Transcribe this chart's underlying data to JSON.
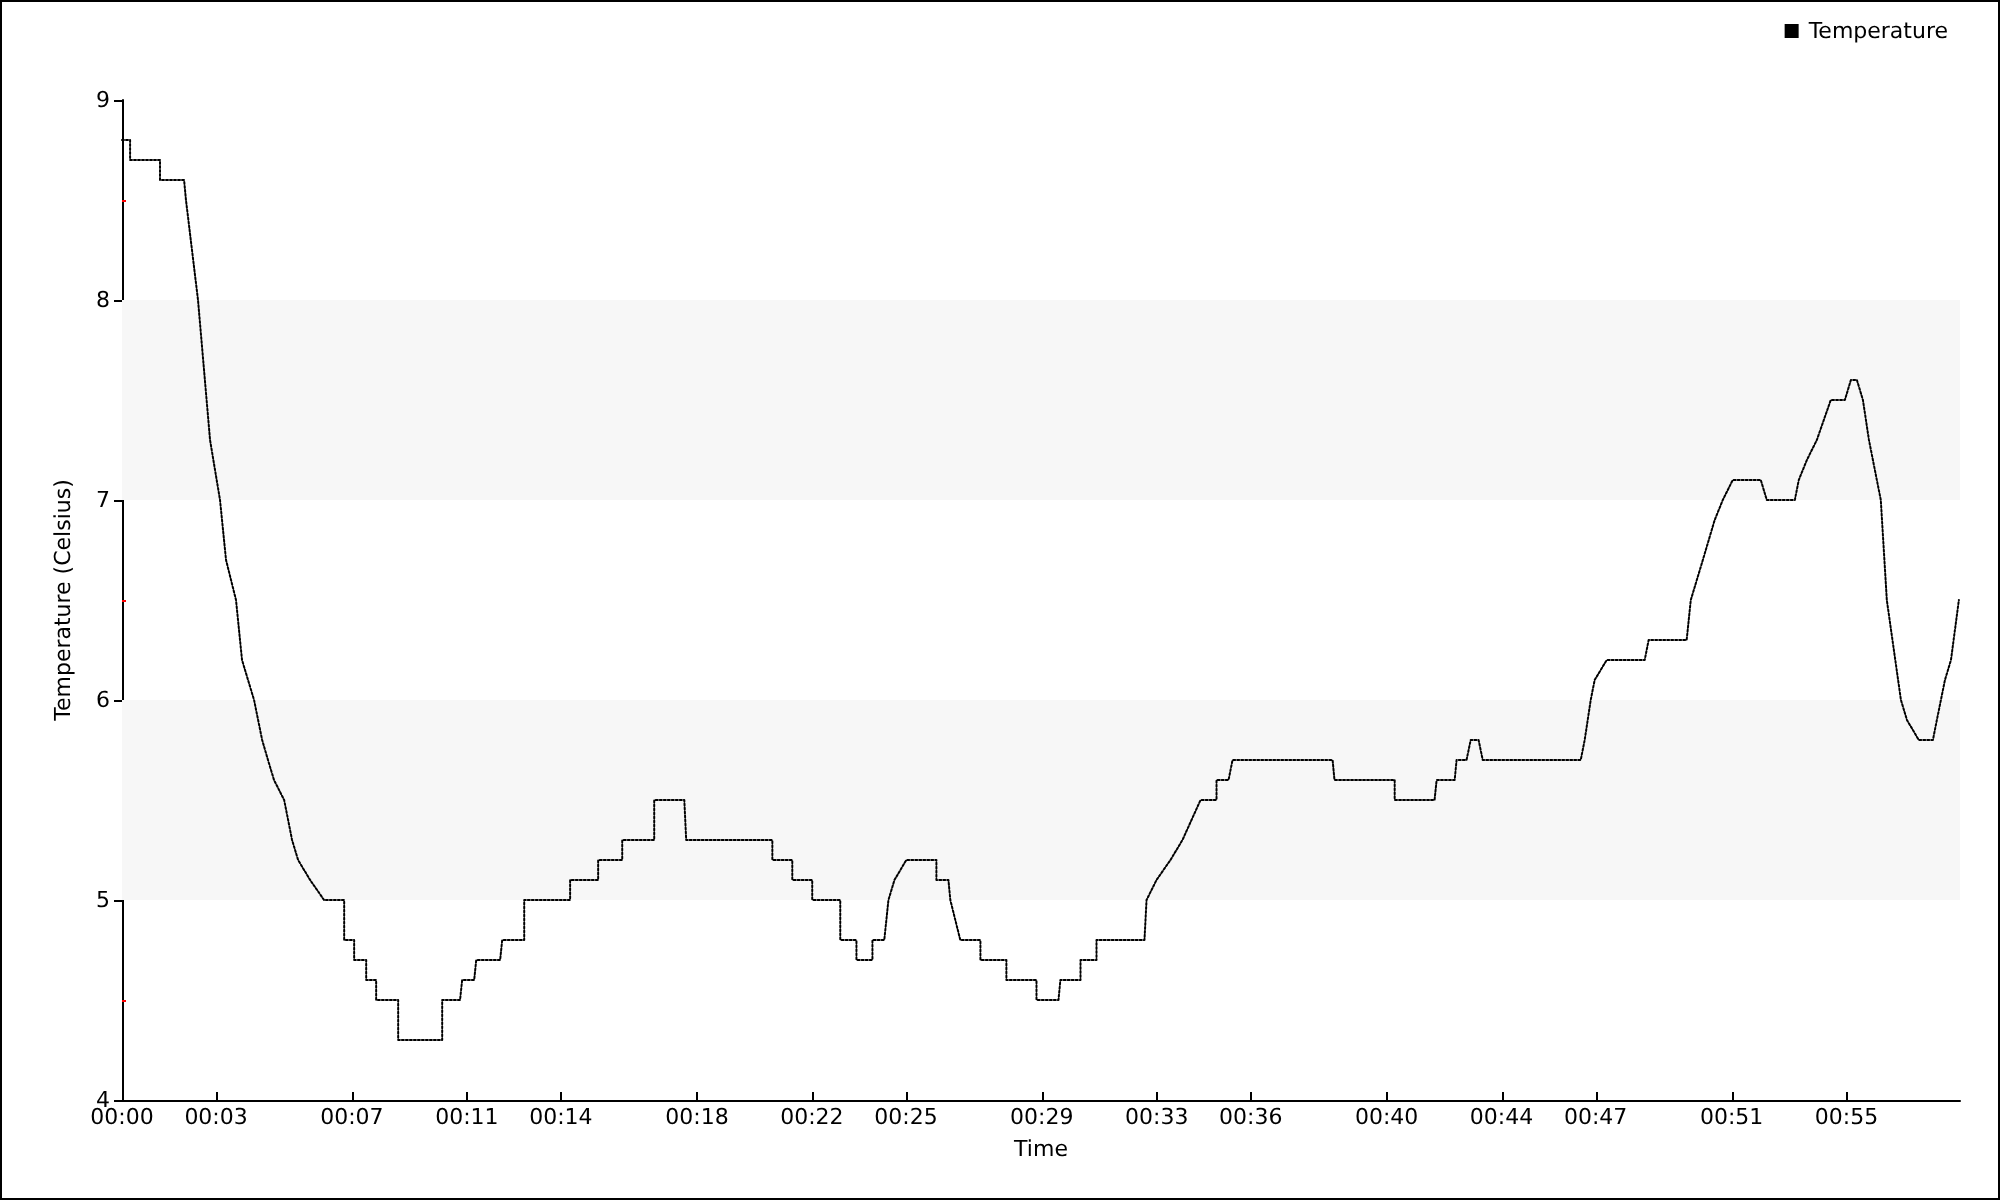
{
  "chart_data": {
    "type": "line",
    "xlabel": "Time",
    "ylabel": "Temperature (Celsius)",
    "x": [
      0,
      0.0043,
      0.0043,
      0.0202,
      0.0202,
      0.033,
      0.034,
      0.0404,
      0.0468,
      0.0521,
      0.0553,
      0.0606,
      0.0638,
      0.067,
      0.0702,
      0.0745,
      0.0776,
      0.0808,
      0.0862,
      0.0904,
      0.0936,
      0.1,
      0.1074,
      0.1181,
      0.1181,
      0.1234,
      0.1234,
      0.1298,
      0.1298,
      0.1351,
      0.1351,
      0.1468,
      0.1468,
      0.1702,
      0.1702,
      0.1797,
      0.1808,
      0.1872,
      0.1883,
      0.201,
      0.2021,
      0.2138,
      0.2138,
      0.2382,
      0.2382,
      0.2531,
      0.2531,
      0.2659,
      0.2659,
      0.2829,
      0.2829,
      0.2989,
      0.2999,
      0.3457,
      0.3457,
      0.3563,
      0.3563,
      0.3669,
      0.3669,
      0.3818,
      0.3818,
      0.3904,
      0.3904,
      0.3989,
      0.3989,
      0.4052,
      0.4074,
      0.4106,
      0.4169,
      0.4329,
      0.4329,
      0.4393,
      0.4403,
      0.4456,
      0.4563,
      0.4563,
      0.4701,
      0.4701,
      0.4861,
      0.4861,
      0.4978,
      0.4988,
      0.5095,
      0.5095,
      0.518,
      0.518,
      0.5435,
      0.5446,
      0.5499,
      0.5573,
      0.5637,
      0.5733,
      0.5818,
      0.5818,
      0.5882,
      0.5903,
      0.6435,
      0.6445,
      0.6765,
      0.6765,
      0.6977,
      0.6988,
      0.7084,
      0.7094,
      0.7147,
      0.7169,
      0.7211,
      0.7233,
      0.7754,
      0.7775,
      0.7807,
      0.7828,
      0.7892,
      0.8094,
      0.8115,
      0.8317,
      0.8339,
      0.8371,
      0.8403,
      0.8466,
      0.8509,
      0.8562,
      0.8711,
      0.8743,
      0.8892,
      0.8913,
      0.8956,
      0.9009,
      0.9083,
      0.9158,
      0.919,
      0.9222,
      0.9254,
      0.9286,
      0.9349,
      0.9381,
      0.9456,
      0.9488,
      0.9551,
      0.9626,
      0.9647,
      0.969,
      0.9722,
      0.9764
    ],
    "series": [
      {
        "name": "Temperature",
        "color": "#000000",
        "values": [
          8.8,
          8.8,
          8.7,
          8.7,
          8.6,
          8.6,
          8.5,
          8.0,
          7.3,
          7.0,
          6.7,
          6.5,
          6.2,
          6.1,
          6.0,
          5.8,
          5.7,
          5.6,
          5.5,
          5.3,
          5.2,
          5.1,
          5.0,
          5.0,
          4.8,
          4.8,
          4.7,
          4.7,
          4.6,
          4.6,
          4.5,
          4.5,
          4.3,
          4.3,
          4.5,
          4.5,
          4.6,
          4.6,
          4.7,
          4.7,
          4.8,
          4.8,
          5.0,
          5.0,
          5.1,
          5.1,
          5.2,
          5.2,
          5.3,
          5.3,
          5.5,
          5.5,
          5.3,
          5.3,
          5.2,
          5.2,
          5.1,
          5.1,
          5.0,
          5.0,
          4.8,
          4.8,
          4.7,
          4.7,
          4.8,
          4.8,
          5.0,
          5.1,
          5.2,
          5.2,
          5.1,
          5.1,
          5.0,
          4.8,
          4.8,
          4.7,
          4.7,
          4.6,
          4.6,
          4.5,
          4.5,
          4.6,
          4.6,
          4.7,
          4.7,
          4.8,
          4.8,
          5.0,
          5.1,
          5.2,
          5.3,
          5.5,
          5.5,
          5.6,
          5.6,
          5.7,
          5.7,
          5.6,
          5.6,
          5.5,
          5.5,
          5.6,
          5.6,
          5.7,
          5.7,
          5.8,
          5.8,
          5.7,
          5.7,
          5.8,
          6.0,
          6.1,
          6.2,
          6.2,
          6.3,
          6.3,
          6.5,
          6.6,
          6.7,
          6.9,
          7.0,
          7.1,
          7.1,
          7.0,
          7.0,
          7.1,
          7.2,
          7.3,
          7.5,
          7.5,
          7.6,
          7.6,
          7.5,
          7.3,
          7.0,
          6.5,
          6.0,
          5.9,
          5.8,
          5.8,
          5.9,
          6.1,
          6.2,
          6.5
        ]
      }
    ],
    "xlim": [
      0,
      0.977
    ],
    "xticks": [
      {
        "value": 0,
        "label": "00:00"
      },
      {
        "value": 0.05,
        "label": "00:03"
      },
      {
        "value": 0.1222,
        "label": "00:07"
      },
      {
        "value": 0.1833,
        "label": "00:11"
      },
      {
        "value": 0.2333,
        "label": "00:14"
      },
      {
        "value": 0.3056,
        "label": "00:18"
      },
      {
        "value": 0.3667,
        "label": "00:22"
      },
      {
        "value": 0.4167,
        "label": "00:25"
      },
      {
        "value": 0.4889,
        "label": "00:29"
      },
      {
        "value": 0.55,
        "label": "00:33"
      },
      {
        "value": 0.6,
        "label": "00:36"
      },
      {
        "value": 0.6722,
        "label": "00:40"
      },
      {
        "value": 0.7333,
        "label": "00:44"
      },
      {
        "value": 0.7833,
        "label": "00:47"
      },
      {
        "value": 0.8556,
        "label": "00:51"
      },
      {
        "value": 0.9167,
        "label": "00:55"
      }
    ],
    "ylim": [
      4,
      9
    ],
    "yticks": [
      4,
      {
        "value": 4.5,
        "label": null
      },
      5,
      {
        "value": 5.5,
        "label": null
      },
      6,
      {
        "value": 6.5,
        "label": null
      },
      7,
      {
        "value": 7.5,
        "label": null
      },
      8,
      {
        "value": 8.5,
        "label": null
      },
      9
    ],
    "bands": [
      {
        "axis": "y",
        "from": 5,
        "to": 6,
        "color": "#f7f7f7"
      },
      {
        "axis": "y",
        "from": 7,
        "to": 8,
        "color": "#f7f7f7"
      }
    ],
    "grid": false,
    "legend": "top right",
    "marker": "none",
    "line_style": "dotted"
  }
}
